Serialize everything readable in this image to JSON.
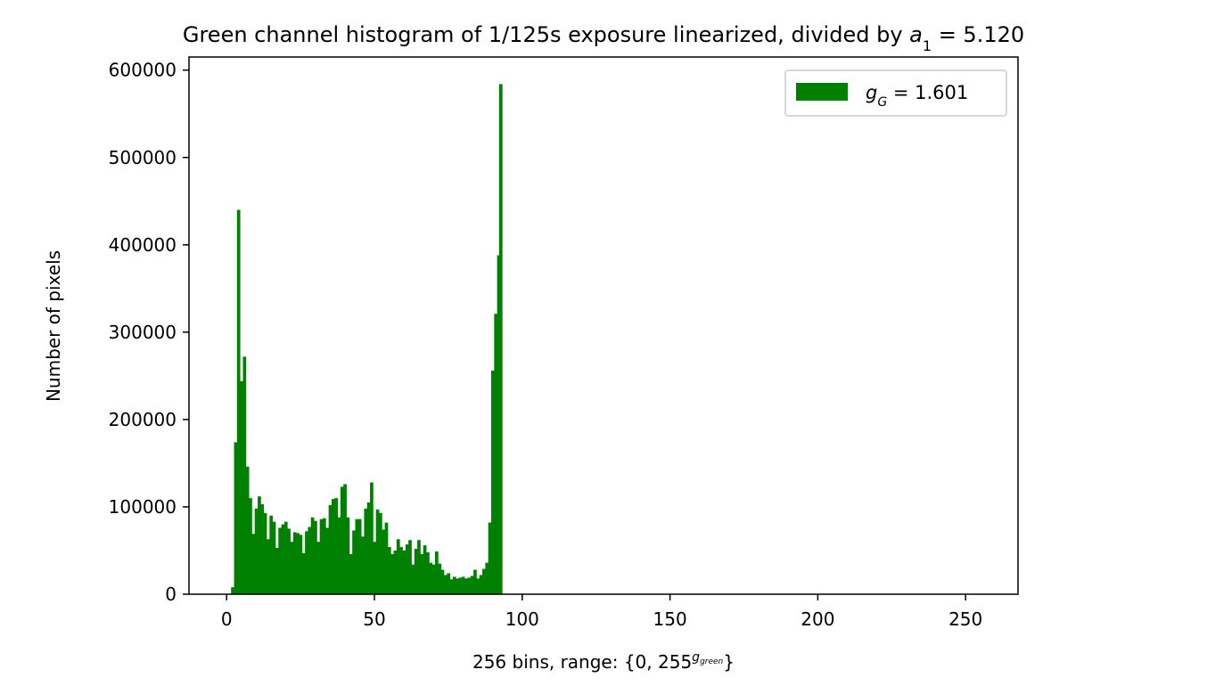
{
  "chart_data": {
    "type": "bar",
    "title_prefix": "Green channel histogram of 1/125s exposure linearized, divided by ",
    "title_var": "a",
    "title_var_sub": "1",
    "title_suffix": " = 5.120",
    "xlabel_prefix": "256 bins, range: {0, 255",
    "xlabel_sup": "g",
    "xlabel_sup_sub": "green",
    "xlabel_suffix": "}",
    "ylabel": "Number of pixels",
    "legend_var": "g",
    "legend_var_sub": "G",
    "legend_value": " = 1.601",
    "legend_position": "top-right",
    "color": "#008000",
    "bins": 256,
    "bin_width": 0.362,
    "xlim": [
      -12.74,
      267.74
    ],
    "ylim": [
      0,
      615000
    ],
    "xticks": [
      0,
      50,
      100,
      150,
      200,
      250
    ],
    "xtick_labels": [
      "0",
      "50",
      "100",
      "150",
      "200",
      "250"
    ],
    "yticks": [
      0,
      100000,
      200000,
      300000,
      400000,
      500000,
      600000
    ],
    "ytick_labels": [
      "0",
      "100000",
      "200000",
      "300000",
      "400000",
      "500000",
      "600000"
    ],
    "grid": false,
    "x": [
      1.5,
      2.5,
      3.5,
      4.5,
      5.5,
      6.5,
      7.5,
      8.5,
      9.5,
      10.5,
      11.5,
      12.5,
      13.5,
      14.5,
      15.5,
      16.5,
      17.5,
      18.5,
      19.5,
      20.5,
      21.5,
      22.5,
      23.5,
      24.5,
      25.5,
      26.5,
      27.5,
      28.5,
      29.5,
      30.5,
      31.5,
      32.5,
      33.5,
      34.5,
      35.5,
      36.5,
      37.5,
      38.5,
      39.5,
      40.5,
      41.5,
      42.5,
      43.5,
      44.5,
      45.5,
      46.5,
      47.5,
      48.5,
      49.5,
      50.5,
      51.5,
      52.5,
      53.5,
      54.5,
      55.5,
      56.5,
      57.5,
      58.5,
      59.5,
      60.5,
      61.5,
      62.5,
      63.5,
      64.5,
      65.5,
      66.5,
      67.5,
      68.5,
      69.5,
      70.5,
      71.5,
      72.5,
      73.5,
      74.5,
      75.5,
      76.5,
      77.5,
      78.5,
      79.5,
      80.5,
      81.5,
      82.5,
      83.5,
      84.5,
      85.5,
      86.5,
      87.5,
      88.5,
      89.5,
      90.5,
      91.5,
      92.2
    ],
    "values": [
      8000,
      174000,
      440000,
      244000,
      272000,
      146000,
      110000,
      69000,
      98000,
      112000,
      103000,
      93000,
      63000,
      90000,
      83000,
      53000,
      76000,
      80000,
      83000,
      75000,
      60000,
      71000,
      70000,
      68000,
      47000,
      72000,
      77000,
      88000,
      84000,
      60000,
      86000,
      87000,
      76000,
      102000,
      109000,
      110000,
      88000,
      123000,
      126000,
      88000,
      46000,
      73000,
      86000,
      86000,
      66000,
      98000,
      105000,
      128000,
      60000,
      97000,
      93000,
      74000,
      82000,
      54000,
      46000,
      50000,
      63000,
      54000,
      50000,
      57000,
      62000,
      34000,
      52000,
      62000,
      46000,
      56000,
      48000,
      36000,
      34000,
      49000,
      35000,
      28000,
      22000,
      24000,
      17000,
      20000,
      18000,
      19000,
      20000,
      18000,
      19000,
      21000,
      28000,
      18000,
      22000,
      29000,
      36000,
      82000,
      256000,
      321000,
      388000,
      584000
    ]
  }
}
